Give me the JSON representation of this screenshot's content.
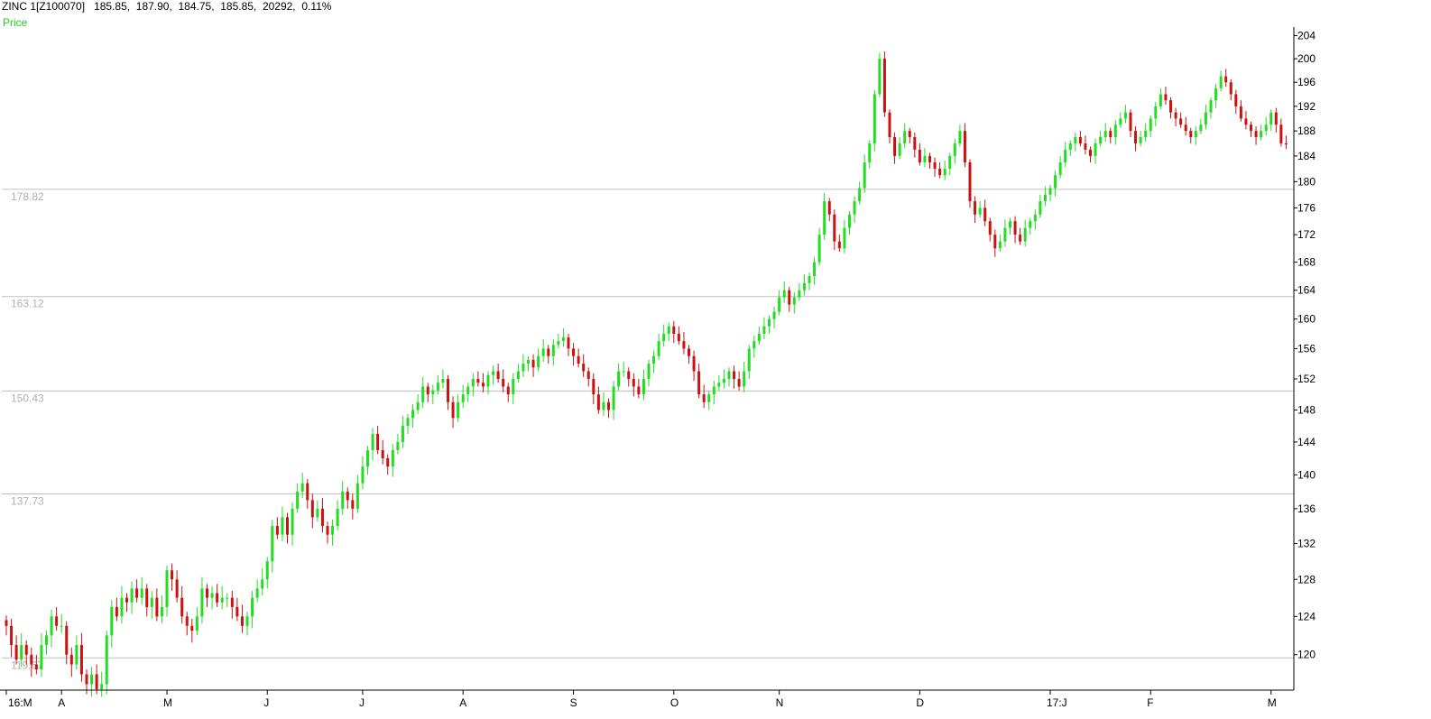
{
  "header": {
    "symbol": "ZINC 1[Z100070]",
    "open": "185.85,",
    "high": "187.90,",
    "low": "184.75,",
    "close": "185.85,",
    "volume": "20292,",
    "change": "0.11%"
  },
  "series_label": "Price",
  "colors": {
    "up": "#22dd22",
    "down": "#cc1111",
    "level_line": "#c0c0c0",
    "axis": "#000000"
  },
  "chart_data": {
    "type": "candlestick",
    "title": "ZINC 1[Z100070]",
    "y_ticks": [
      120,
      124,
      128,
      132,
      136,
      140,
      144,
      148,
      152,
      156,
      160,
      164,
      168,
      172,
      176,
      180,
      184,
      188,
      192,
      196,
      200,
      204
    ],
    "ylim": [
      116,
      205
    ],
    "x_tick_labels": [
      "16:M",
      "A",
      "M",
      "J",
      "J",
      "A",
      "S",
      "O",
      "N",
      "D",
      "17:J",
      "F",
      "M"
    ],
    "levels": [
      {
        "label": "178.82",
        "value": 178.82
      },
      {
        "label": "163.12",
        "value": 163.12
      },
      {
        "label": "150.43",
        "value": 150.43
      },
      {
        "label": "137.73",
        "value": 137.73
      },
      {
        "label": "119.67",
        "value": 119.67
      }
    ],
    "months": [
      {
        "label": "16:M",
        "closes": [
          123,
          121,
          119.5,
          121,
          120,
          119,
          118.5,
          121,
          122,
          124,
          123
        ]
      },
      {
        "label": "A",
        "closes": [
          123,
          120,
          119,
          121,
          118,
          117,
          118,
          116.5,
          117,
          122,
          125,
          124,
          126,
          125.5,
          127,
          126,
          127,
          125,
          126,
          124,
          125
        ]
      },
      {
        "label": "M",
        "closes": [
          129,
          128,
          126,
          124,
          123,
          122.5,
          124,
          127,
          126,
          126.5,
          125.5,
          126,
          126,
          125,
          124,
          123,
          124,
          126,
          127,
          128
        ]
      },
      {
        "label": "J",
        "closes": [
          130,
          134,
          133,
          135,
          133,
          136,
          138,
          139,
          137,
          135,
          136,
          134,
          133,
          134,
          136,
          138,
          137,
          136,
          139
        ]
      },
      {
        "label": "J",
        "closes": [
          141,
          143,
          145,
          143,
          142,
          141,
          143,
          144,
          146,
          147,
          148,
          149,
          151,
          150,
          150.5,
          151.5,
          152,
          149,
          147,
          149
        ]
      },
      {
        "label": "A",
        "closes": [
          150,
          151,
          152,
          151.5,
          151,
          152.5,
          153,
          152,
          151,
          150,
          152,
          153,
          154,
          154.5,
          153.5,
          155,
          156,
          155,
          156.5,
          157,
          157.5,
          156
        ]
      },
      {
        "label": "S",
        "closes": [
          155,
          154,
          153,
          152,
          150,
          148,
          149,
          148,
          151,
          153,
          153,
          152,
          151,
          150,
          152,
          154,
          155,
          157,
          158,
          159
        ]
      },
      {
        "label": "O",
        "closes": [
          158,
          157,
          156,
          155,
          153,
          150,
          149,
          150,
          151,
          151.5,
          152,
          153,
          152,
          151,
          153,
          156,
          157,
          158,
          159,
          160,
          161
        ]
      },
      {
        "label": "N",
        "closes": [
          163,
          164,
          162,
          163,
          164,
          165,
          166,
          168,
          172,
          177,
          175,
          171,
          170,
          173,
          175,
          177,
          179,
          183,
          186,
          194,
          200,
          191,
          187,
          184,
          186,
          188,
          187,
          185
        ]
      },
      {
        "label": "D",
        "closes": [
          183,
          184,
          183,
          182,
          181,
          182,
          184,
          186,
          188,
          183,
          177,
          175,
          176,
          174,
          172,
          170,
          171,
          173,
          174,
          172,
          171,
          173,
          174,
          175,
          177,
          178
        ]
      },
      {
        "label": "17:J",
        "closes": [
          179,
          181,
          183,
          185,
          186,
          187,
          186,
          185,
          184,
          186,
          187,
          188,
          187,
          189,
          190,
          191,
          188,
          186,
          187,
          188
        ]
      },
      {
        "label": "F",
        "closes": [
          190,
          192,
          194,
          193,
          191,
          190,
          189,
          188,
          187,
          188,
          189,
          191,
          193,
          195,
          197,
          196,
          194,
          192,
          190,
          189,
          188,
          187,
          188,
          189
        ]
      },
      {
        "label": "M",
        "closes": [
          191,
          189,
          186,
          185.85
        ]
      }
    ]
  }
}
